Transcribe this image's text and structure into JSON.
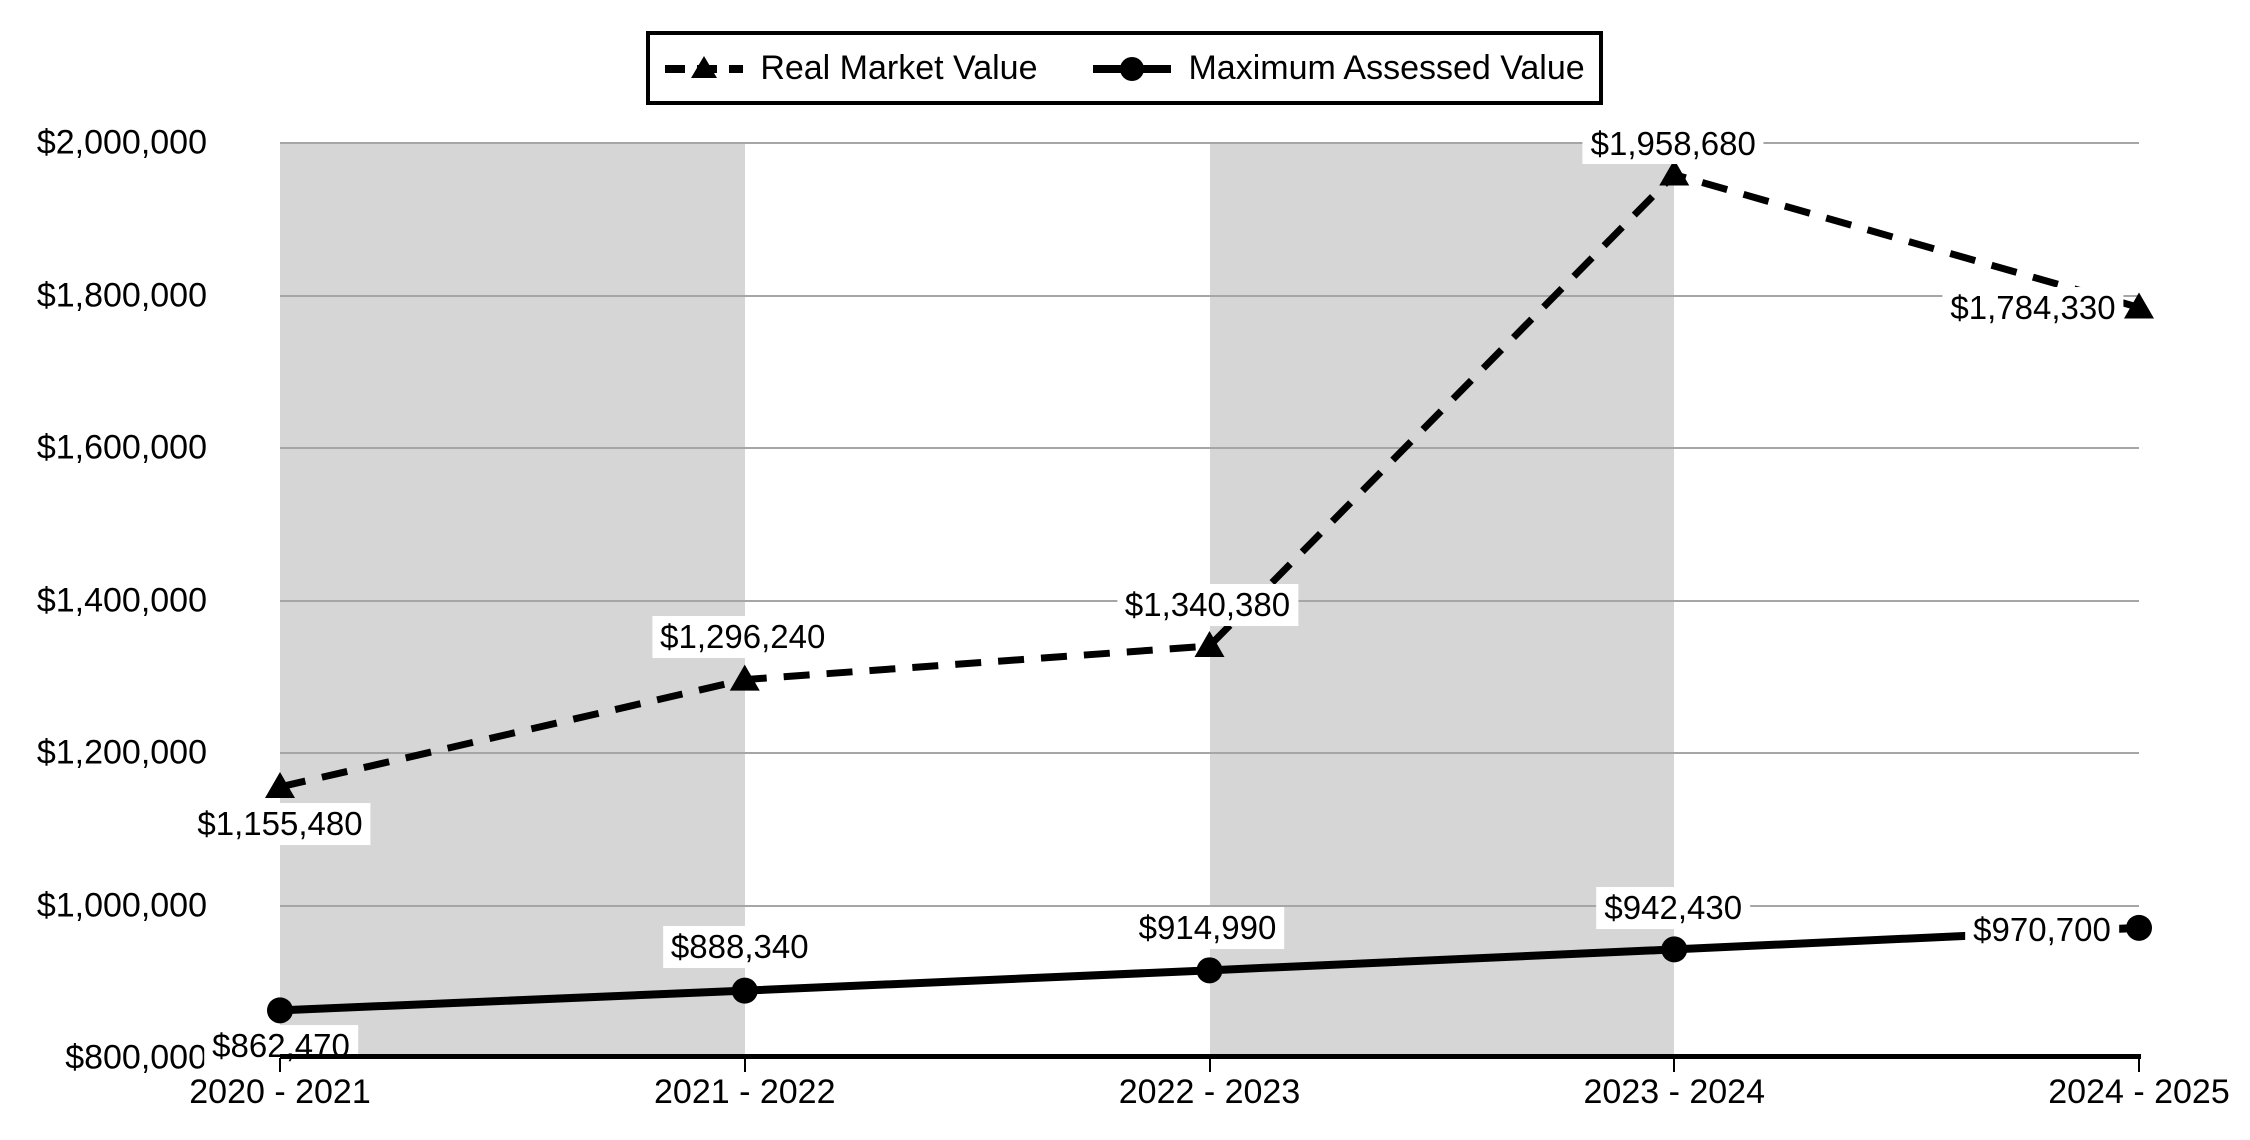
{
  "chart_data": {
    "type": "line",
    "categories": [
      "2020 - 2021",
      "2021 - 2022",
      "2022 - 2023",
      "2023 - 2024",
      "2024 - 2025"
    ],
    "series": [
      {
        "name": "Real Market Value",
        "line_style": "dashed",
        "marker": "triangle",
        "values": [
          1155480,
          1296240,
          1340380,
          1958680,
          1784330
        ],
        "labels": [
          "$1,155,480",
          "$1,296,240",
          "$1,340,380",
          "$1,958,680",
          "$1,784,330"
        ]
      },
      {
        "name": "Maximum Assessed Value",
        "line_style": "solid",
        "marker": "circle",
        "values": [
          862470,
          888340,
          914990,
          942430,
          970700
        ],
        "labels": [
          "$862,470",
          "$888,340",
          "$914,990",
          "$942,430",
          "$970,700"
        ]
      }
    ],
    "y_axis": {
      "min": 800000,
      "max": 2000000,
      "step": 200000,
      "tick_labels": [
        "$2,000,000",
        "$1,800,000",
        "$1,600,000",
        "$1,400,000",
        "$1,200,000",
        "$1,000,000",
        "$800,000"
      ]
    },
    "shaded_intervals": [
      [
        0,
        1
      ],
      [
        2,
        3
      ]
    ],
    "legend_position": "top",
    "grid": true,
    "colors": {
      "series": "#000000",
      "gridline": "#a6a6a6",
      "band": "#d6d6d6",
      "background": "#ffffff"
    }
  }
}
